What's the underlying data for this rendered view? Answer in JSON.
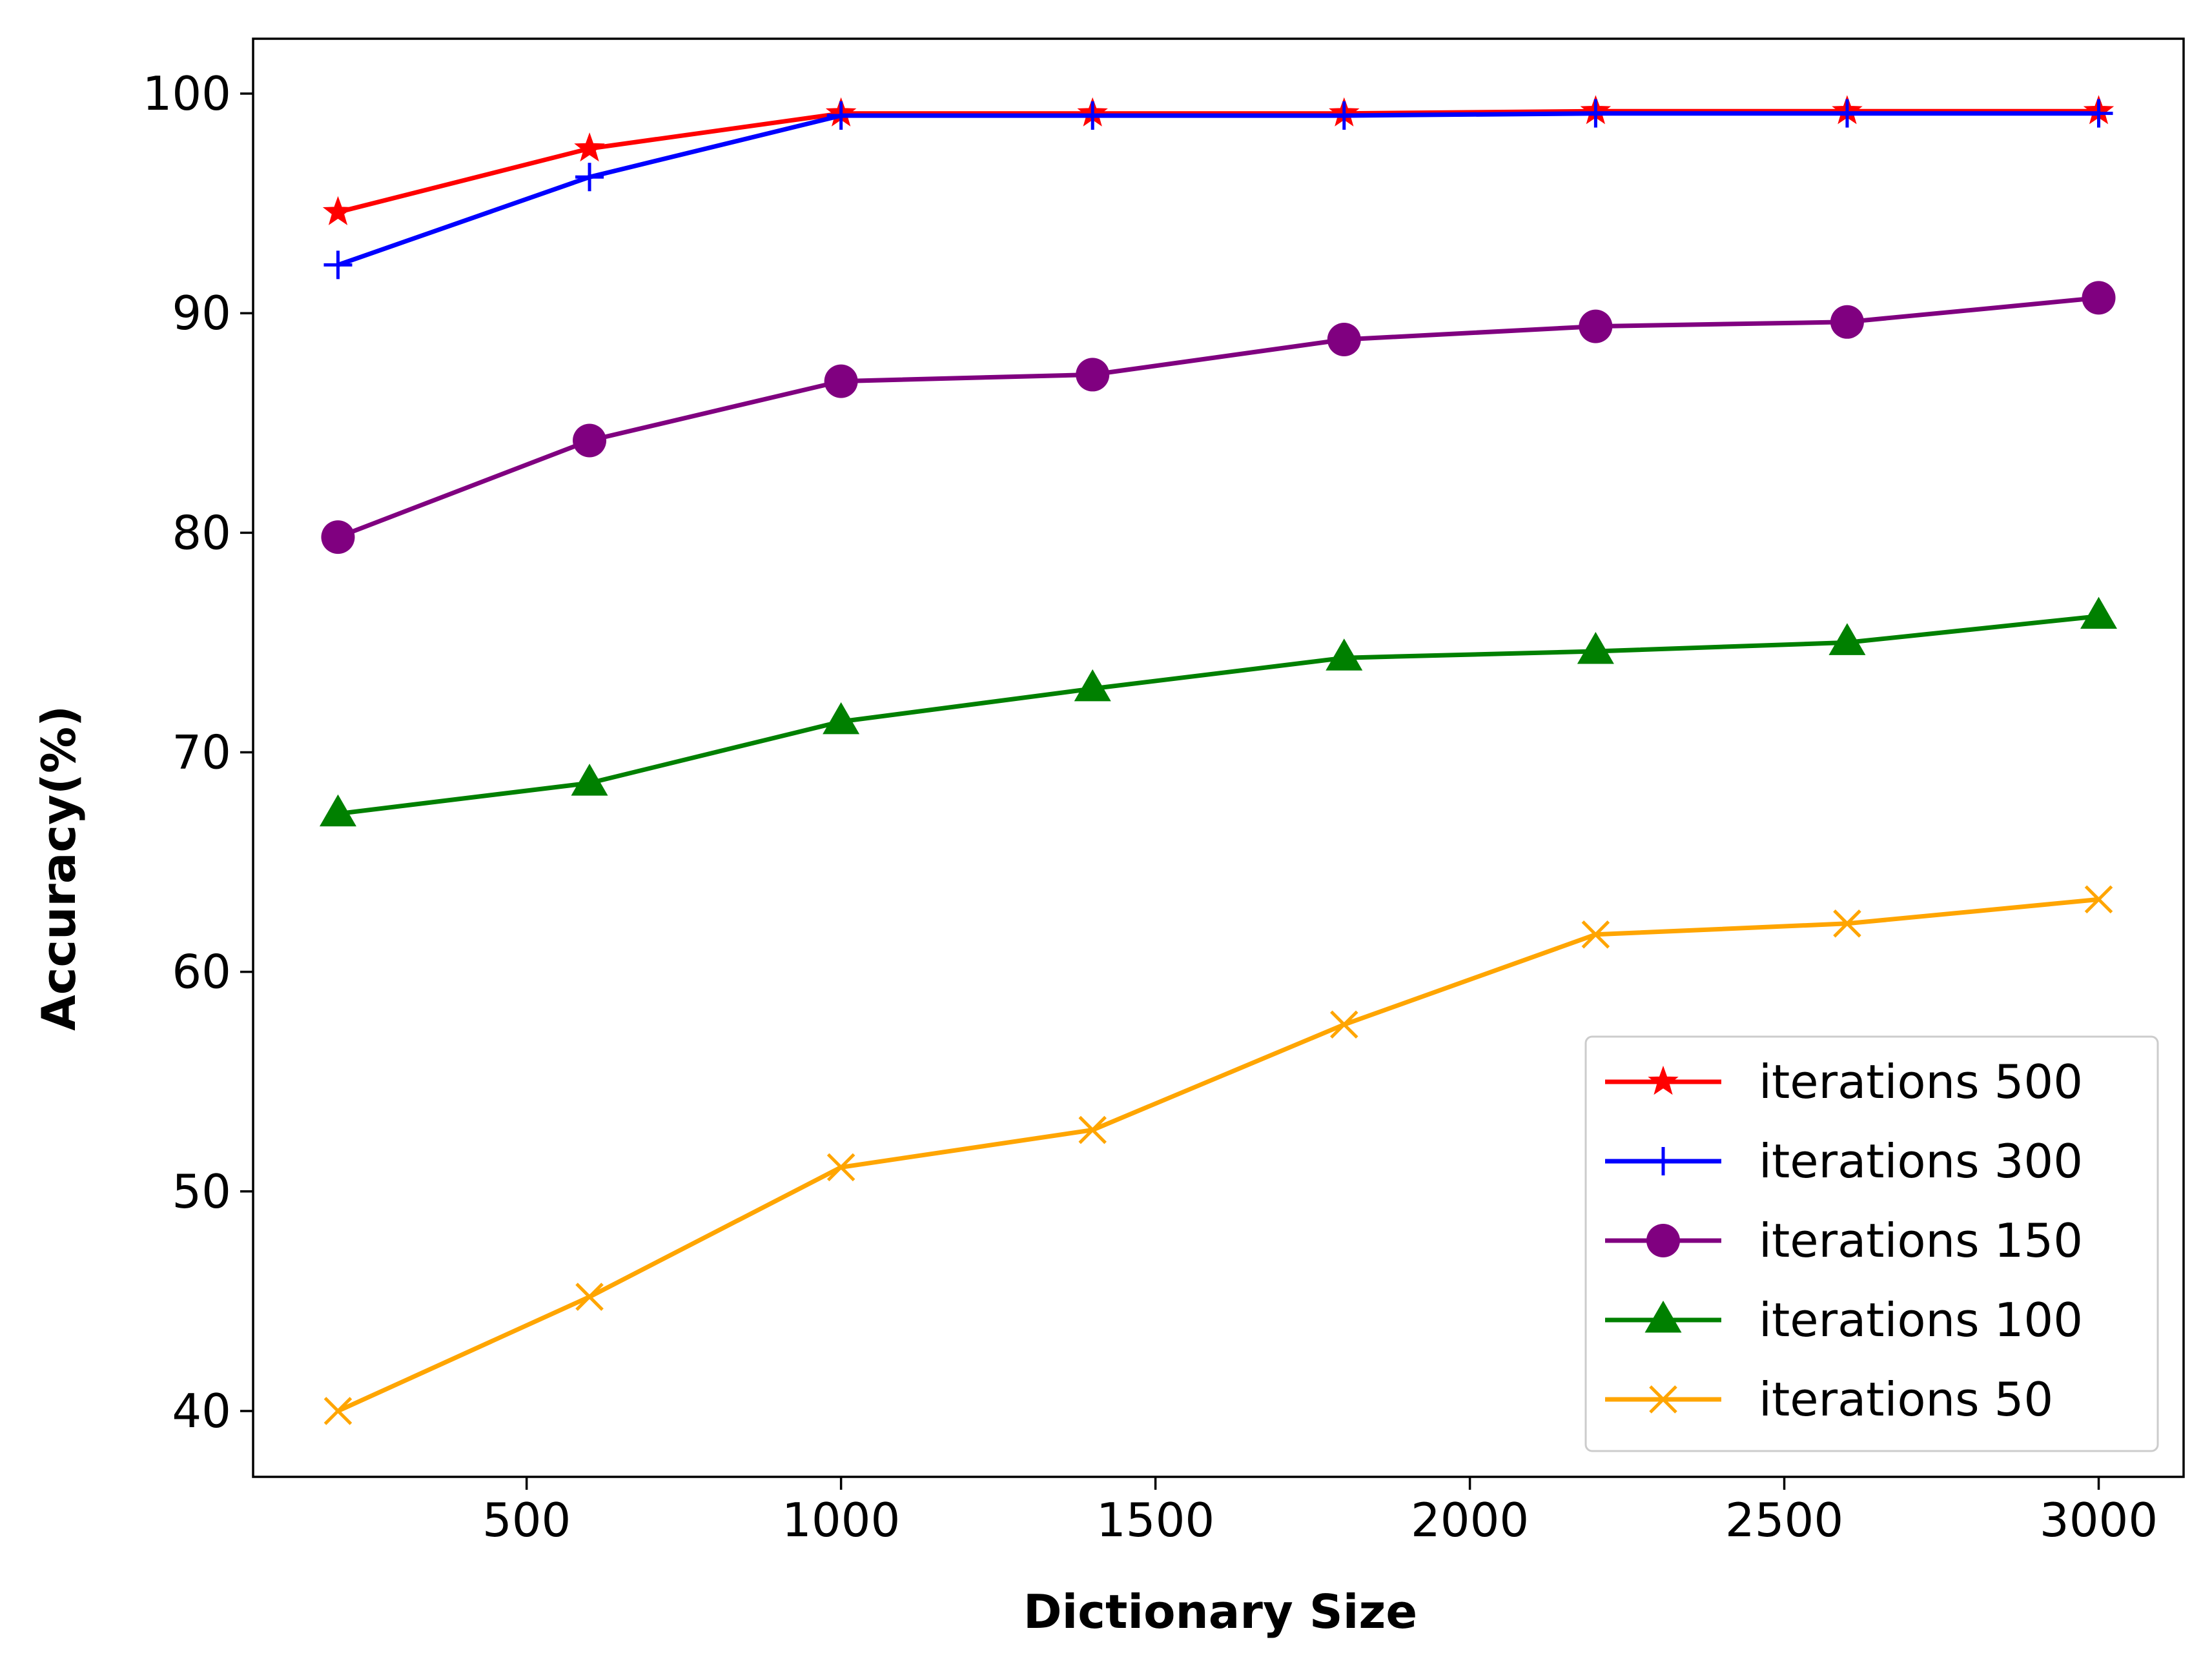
{
  "chart_data": {
    "type": "line",
    "title": "",
    "xlabel": "Dictionary Size",
    "ylabel": "Accuracy(%)",
    "x": [
      200,
      600,
      1000,
      1400,
      1800,
      2200,
      2600,
      3000
    ],
    "xlim": [
      65,
      3135
    ],
    "ylim": [
      37.0,
      102.5
    ],
    "xticks": [
      500,
      1000,
      1500,
      2000,
      2500,
      3000
    ],
    "yticks": [
      40,
      50,
      60,
      70,
      80,
      90,
      100
    ],
    "grid": false,
    "legend_position": "lower-right",
    "series": [
      {
        "name": "iterations 500",
        "color": "#ff0000",
        "marker": "star",
        "values": [
          94.6,
          97.5,
          99.1,
          99.1,
          99.1,
          99.2,
          99.2,
          99.2
        ]
      },
      {
        "name": "iterations 300",
        "color": "#0000ff",
        "marker": "plus",
        "values": [
          92.2,
          96.2,
          99.0,
          99.0,
          99.0,
          99.1,
          99.1,
          99.1
        ]
      },
      {
        "name": "iterations 150",
        "color": "#800080",
        "marker": "circle",
        "values": [
          79.8,
          84.2,
          86.9,
          87.2,
          88.8,
          89.4,
          89.6,
          90.7
        ]
      },
      {
        "name": "iterations 100",
        "color": "#008000",
        "marker": "triangle",
        "values": [
          67.2,
          68.6,
          71.4,
          72.9,
          74.3,
          74.6,
          75.0,
          76.2
        ]
      },
      {
        "name": "iterations 50",
        "color": "#ffa500",
        "marker": "x",
        "values": [
          40.0,
          45.2,
          51.1,
          52.8,
          57.6,
          61.7,
          62.2,
          63.3
        ]
      }
    ]
  }
}
